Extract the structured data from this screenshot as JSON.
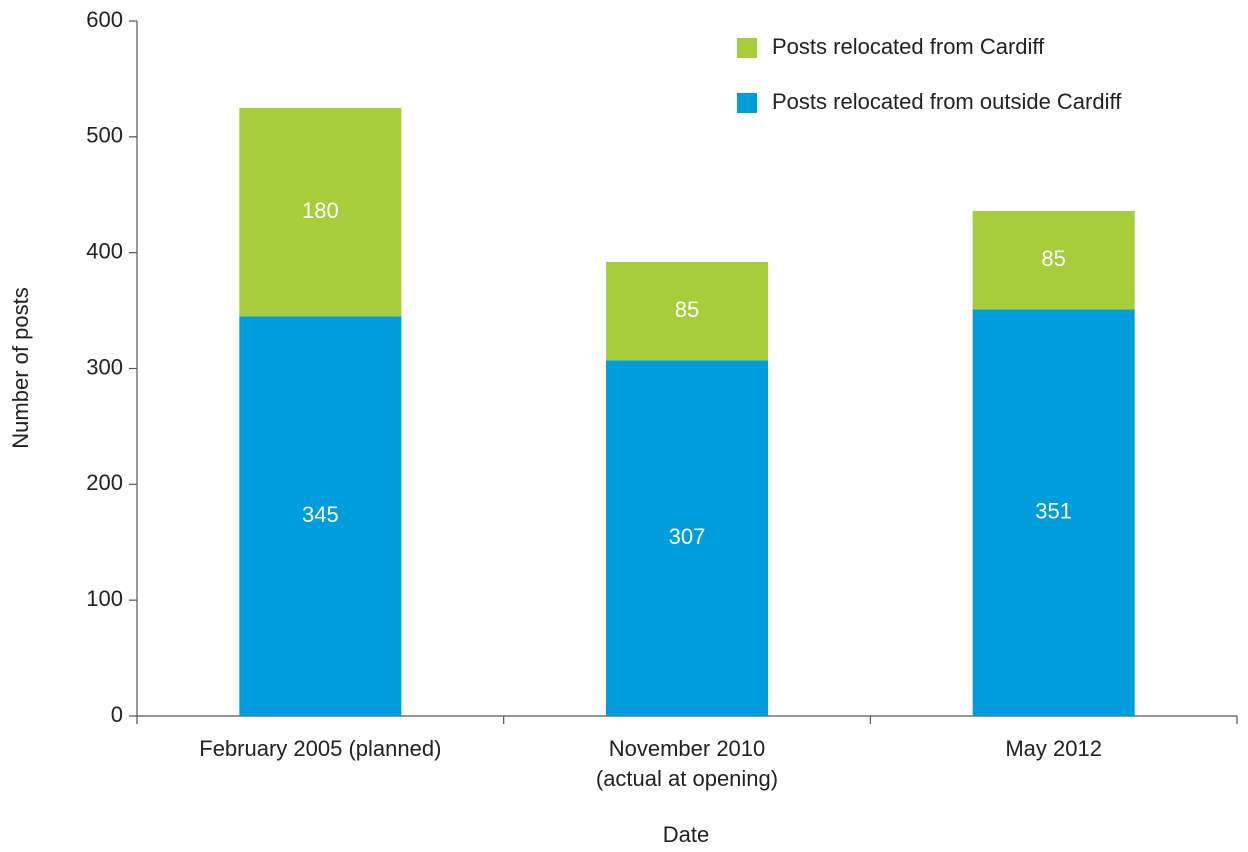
{
  "chart_data": {
    "type": "stacked_bar",
    "categories": [
      "February 2005 (planned)",
      "November 2010\n(actual at opening)",
      "May 2012"
    ],
    "series": [
      {
        "name": "Posts relocated from outside Cardiff",
        "color": "#009ddc",
        "values": [
          345,
          307,
          351
        ]
      },
      {
        "name": "Posts relocated from Cardiff",
        "color": "#a8cd3a",
        "values": [
          180,
          85,
          85
        ]
      }
    ],
    "x_label": "Date",
    "y_label": "Number of posts",
    "ylim": [
      0,
      600
    ],
    "yticks": [
      0,
      100,
      200,
      300,
      400,
      500,
      600
    ],
    "legend": "top-right",
    "grid": false
  }
}
